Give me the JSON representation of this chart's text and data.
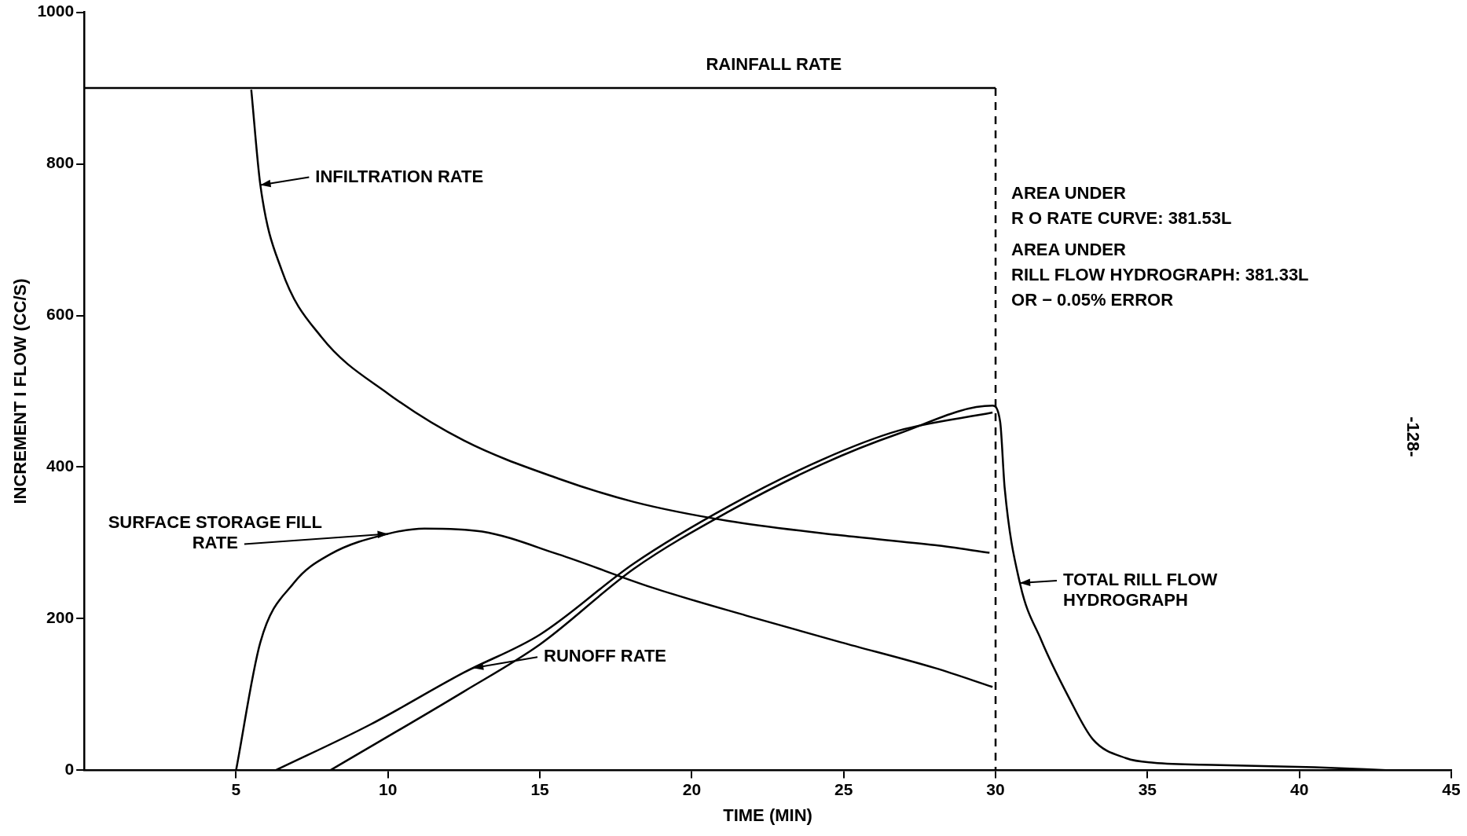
{
  "chart_data": {
    "type": "line",
    "xlabel": "TIME (MIN)",
    "ylabel": "INCREMENT I FLOW (CC/S)",
    "xlim": [
      0,
      45
    ],
    "xticks": [
      5,
      10,
      15,
      20,
      25,
      30,
      35,
      40,
      45
    ],
    "ylim": [
      0,
      1000
    ],
    "yticks": [
      0,
      200,
      400,
      600,
      800,
      1000
    ],
    "grid": false,
    "legend": false,
    "marker": "none",
    "line_style": "solid",
    "series": [
      {
        "color": "#000000",
        "x": [
          0,
          30
        ],
        "values": [
          900,
          900
        ]
      },
      {
        "color": "#000000",
        "x": [
          5.5,
          5.8,
          6.5,
          7.8,
          10,
          12.5,
          15.6,
          18.1,
          21.2,
          24.9,
          28,
          29.8
        ],
        "values": [
          898,
          772,
          660,
          572,
          497,
          435,
          385,
          354,
          329,
          310,
          297,
          287
        ]
      },
      {
        "color": "#000000",
        "x": [
          5,
          5.8,
          6.9,
          8.1,
          10,
          11.2,
          13.1,
          15.6,
          18.7,
          21.8,
          24.9,
          28,
          29.9
        ],
        "values": [
          0,
          169,
          247,
          285,
          312,
          319,
          315,
          285,
          241,
          204,
          169,
          135,
          110
        ]
      },
      {
        "color": "#000000",
        "x": [
          6.3,
          9.4,
          12.5,
          15,
          18.1,
          21.2,
          24.3,
          26.8,
          29.9
        ],
        "values": [
          0,
          60,
          129,
          179,
          273,
          348,
          410,
          448,
          472
        ]
      },
      {
        "color": "#000000",
        "x": [
          8.1,
          12.5,
          15,
          18.1,
          21.2,
          24.3,
          26.8,
          29.9,
          30.15,
          30.3,
          30.8,
          31.5,
          32.4,
          33.2,
          34.3,
          35.2,
          37.4,
          40.5,
          43
        ],
        "values": [
          0,
          104,
          166,
          266,
          341,
          404,
          444,
          481,
          460,
          372,
          247,
          172,
          97,
          41,
          16,
          10,
          7,
          4,
          0
        ]
      }
    ],
    "ref_lines": [
      {
        "axis": "x",
        "value": 30,
        "line_style": "dashed",
        "color": "#000000"
      }
    ],
    "annotations": [
      {
        "text": "RAINFALL RATE",
        "x": 22.7,
        "y": 900
      },
      {
        "text": "INFILTRATION RATE",
        "x": 5.8,
        "y": 772
      },
      {
        "text": "SURFACE STORAGE FILL RATE",
        "x": 10,
        "y": 312
      },
      {
        "text": "RUNOFF RATE",
        "x": 12.8,
        "y": 135
      },
      {
        "text": "TOTAL RILL FLOW HYDROGRAPH",
        "x": 30.8,
        "y": 247
      },
      "AREA UNDER",
      "R O RATE CURVE: 381.53L",
      "AREA UNDER",
      "RILL FLOW HYDROGRAPH: 381.33L",
      "OR − 0.05% ERROR",
      "-128-"
    ]
  }
}
